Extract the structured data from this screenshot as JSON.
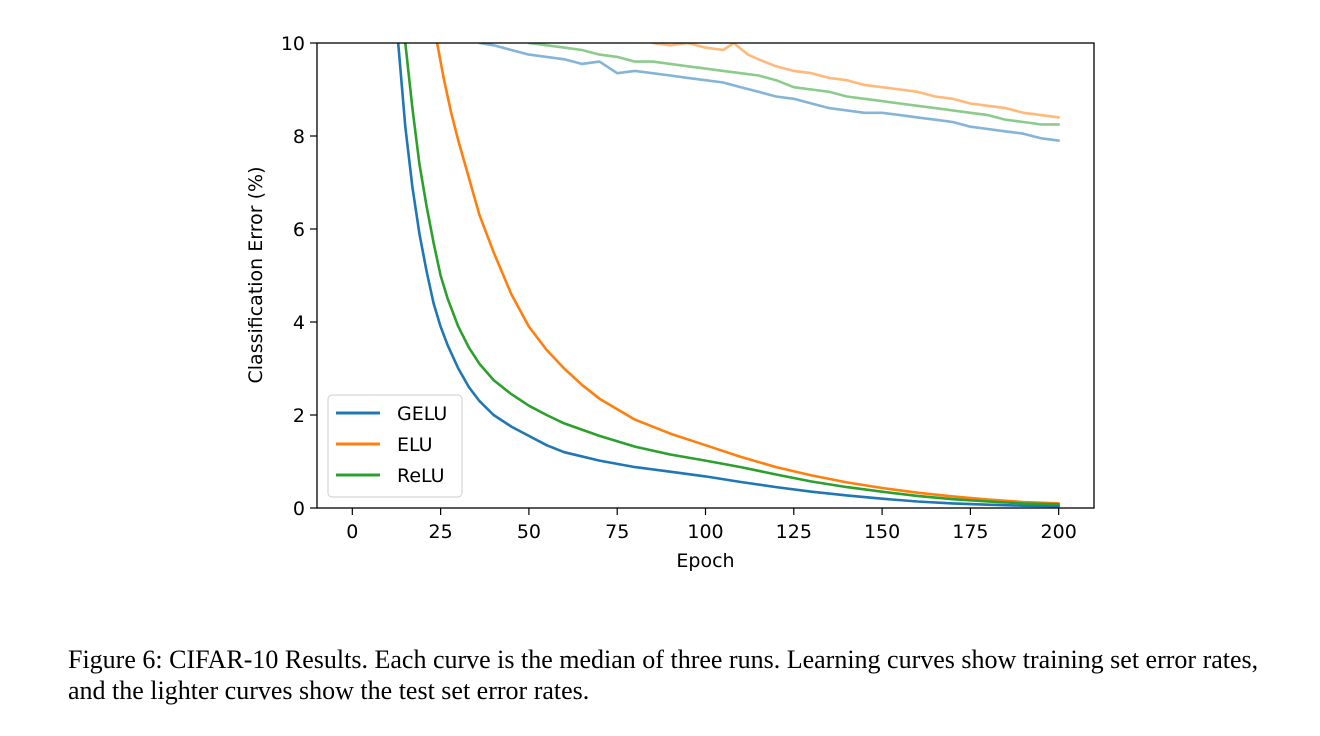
{
  "chart_data": {
    "type": "line",
    "xlabel": "Epoch",
    "ylabel": "Classification Error (%)",
    "xlim": [
      -10,
      210
    ],
    "ylim": [
      0,
      10
    ],
    "xticks": [
      0,
      25,
      50,
      75,
      100,
      125,
      150,
      175,
      200
    ],
    "yticks": [
      0,
      2,
      4,
      6,
      8,
      10
    ],
    "grid": false,
    "legend": {
      "position": "bottom-left",
      "entries": [
        "GELU",
        "ELU",
        "ReLU"
      ]
    },
    "colors": {
      "GELU": "#1f77b4",
      "ELU": "#ff7f0e",
      "ReLU": "#2ca02c"
    },
    "series": [
      {
        "name": "GELU",
        "kind": "train",
        "color": "#1f77b4",
        "x": [
          13,
          15,
          17,
          19,
          21,
          23,
          25,
          27,
          30,
          33,
          36,
          40,
          45,
          50,
          55,
          60,
          70,
          80,
          90,
          100,
          110,
          120,
          130,
          140,
          150,
          160,
          170,
          180,
          190,
          200
        ],
        "y": [
          10,
          8.2,
          6.9,
          5.9,
          5.1,
          4.4,
          3.9,
          3.5,
          3.0,
          2.6,
          2.3,
          2.0,
          1.75,
          1.55,
          1.35,
          1.2,
          1.02,
          0.88,
          0.78,
          0.68,
          0.56,
          0.45,
          0.35,
          0.27,
          0.2,
          0.14,
          0.1,
          0.07,
          0.05,
          0.04
        ]
      },
      {
        "name": "ELU",
        "kind": "train",
        "color": "#ff7f0e",
        "x": [
          24,
          26,
          28,
          30,
          33,
          36,
          40,
          45,
          50,
          55,
          60,
          65,
          70,
          80,
          90,
          100,
          110,
          120,
          130,
          140,
          150,
          160,
          170,
          180,
          190,
          200
        ],
        "y": [
          10,
          9.2,
          8.5,
          7.9,
          7.1,
          6.3,
          5.5,
          4.6,
          3.9,
          3.4,
          3.0,
          2.65,
          2.35,
          1.9,
          1.6,
          1.35,
          1.1,
          0.88,
          0.7,
          0.55,
          0.43,
          0.33,
          0.25,
          0.18,
          0.13,
          0.1
        ]
      },
      {
        "name": "ReLU",
        "kind": "train",
        "color": "#2ca02c",
        "x": [
          15,
          17,
          19,
          21,
          23,
          25,
          27,
          30,
          33,
          36,
          40,
          45,
          50,
          55,
          60,
          70,
          80,
          90,
          100,
          110,
          120,
          130,
          140,
          150,
          160,
          170,
          180,
          190,
          200
        ],
        "y": [
          10,
          8.6,
          7.4,
          6.5,
          5.7,
          5.0,
          4.5,
          3.9,
          3.45,
          3.1,
          2.75,
          2.45,
          2.2,
          2.0,
          1.82,
          1.55,
          1.32,
          1.15,
          1.02,
          0.88,
          0.72,
          0.57,
          0.45,
          0.35,
          0.26,
          0.19,
          0.14,
          0.1,
          0.08
        ]
      },
      {
        "name": "GELU",
        "kind": "test",
        "color": "#1f77b4",
        "x": [
          36,
          40,
          45,
          50,
          55,
          60,
          65,
          70,
          75,
          80,
          85,
          90,
          95,
          100,
          105,
          110,
          115,
          120,
          125,
          130,
          135,
          140,
          145,
          150,
          155,
          160,
          165,
          170,
          175,
          180,
          185,
          190,
          195,
          200
        ],
        "y": [
          10,
          9.95,
          9.85,
          9.75,
          9.7,
          9.65,
          9.55,
          9.6,
          9.35,
          9.4,
          9.35,
          9.3,
          9.25,
          9.2,
          9.15,
          9.05,
          8.95,
          8.85,
          8.8,
          8.7,
          8.6,
          8.55,
          8.5,
          8.5,
          8.45,
          8.4,
          8.35,
          8.3,
          8.2,
          8.15,
          8.1,
          8.05,
          7.95,
          7.9
        ]
      },
      {
        "name": "ELU",
        "kind": "test",
        "color": "#ff7f0e",
        "x": [
          85,
          90,
          95,
          100,
          105,
          108,
          112,
          115,
          120,
          125,
          130,
          135,
          140,
          145,
          150,
          155,
          160,
          165,
          170,
          175,
          180,
          185,
          190,
          195,
          200
        ],
        "y": [
          10,
          9.95,
          10,
          9.9,
          9.85,
          10,
          9.75,
          9.65,
          9.5,
          9.4,
          9.35,
          9.25,
          9.2,
          9.1,
          9.05,
          9.0,
          8.95,
          8.85,
          8.8,
          8.7,
          8.65,
          8.6,
          8.5,
          8.45,
          8.4
        ]
      },
      {
        "name": "ReLU",
        "kind": "test",
        "color": "#2ca02c",
        "x": [
          50,
          55,
          60,
          65,
          70,
          75,
          80,
          85,
          90,
          95,
          100,
          105,
          110,
          115,
          120,
          125,
          130,
          135,
          140,
          145,
          150,
          155,
          160,
          165,
          170,
          175,
          180,
          185,
          190,
          195,
          200
        ],
        "y": [
          10,
          9.95,
          9.9,
          9.85,
          9.75,
          9.7,
          9.6,
          9.6,
          9.55,
          9.5,
          9.45,
          9.4,
          9.35,
          9.3,
          9.2,
          9.05,
          9.0,
          8.95,
          8.85,
          8.8,
          8.75,
          8.7,
          8.65,
          8.6,
          8.55,
          8.5,
          8.45,
          8.35,
          8.3,
          8.25,
          8.25
        ]
      }
    ]
  },
  "caption": {
    "text": "Figure 6: CIFAR-10 Results. Each curve is the median of three runs. Learning curves show training set error rates, and the lighter curves show the test set error rates."
  }
}
